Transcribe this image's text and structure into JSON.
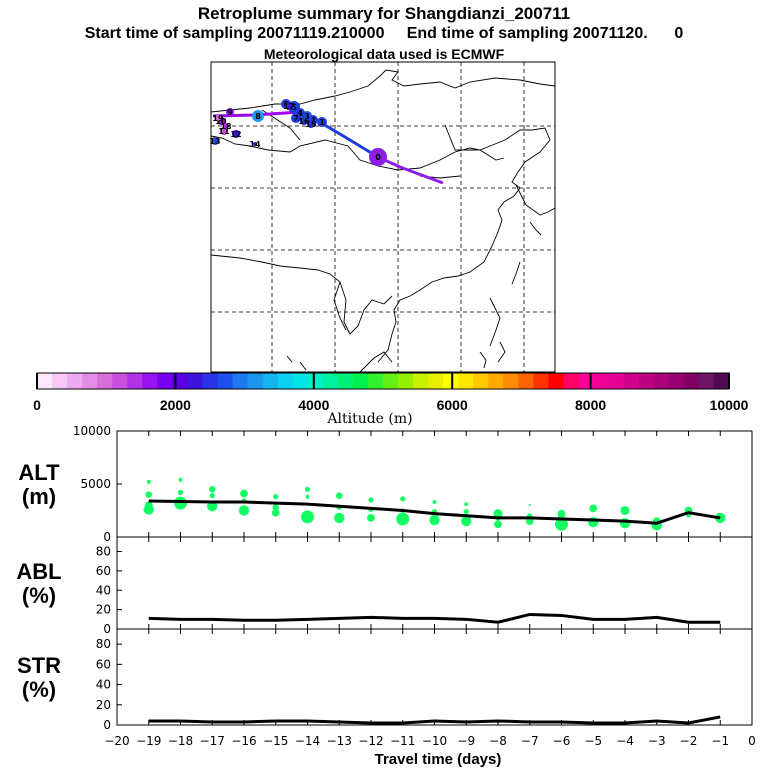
{
  "titles": {
    "line1": "Retroplume summary for Shangdianzi_200711",
    "line2": "Start time of sampling 20071119.210000     End time of sampling 20071120.      0",
    "line3": "Meteorological data used is ECMWF"
  },
  "map": {
    "trajectory_markers": [
      "0",
      "1",
      "2",
      "3",
      "4",
      "5",
      "6",
      "7",
      "8",
      "9",
      "10",
      "11",
      "12",
      "13",
      "14",
      "15",
      "16",
      "17",
      "18",
      "19"
    ],
    "colors": {
      "land_outline": "#000000",
      "grid": "#000000",
      "track_main": "#1e3cdc",
      "track_recent": "#8c1ee6",
      "track_old": "#a000f0"
    }
  },
  "colorbar": {
    "tick_labels": [
      "0",
      "2000",
      "4000",
      "6000",
      "8000",
      "10000"
    ],
    "axis_label": "Altitude (m)",
    "colors": [
      "#ffe6ff",
      "#f5c8f5",
      "#eeaaee",
      "#e38ce3",
      "#d86ed8",
      "#c850dc",
      "#b432e6",
      "#9614f0",
      "#7800f0",
      "#5a00e6",
      "#3c14dc",
      "#2832e6",
      "#1e50f0",
      "#1e78f0",
      "#1e96f0",
      "#14b4f0",
      "#0ad2f0",
      "#00e6e6",
      "#00f0c8",
      "#00f0a0",
      "#00f078",
      "#00f050",
      "#32f032",
      "#64f014",
      "#96f000",
      "#c8f000",
      "#e6f000",
      "#ffff00",
      "#ffe600",
      "#ffc800",
      "#ffaa00",
      "#ff8c00",
      "#ff6400",
      "#ff3200",
      "#ff0000",
      "#ff0064",
      "#ff0096",
      "#f00096",
      "#e60096",
      "#d2008c",
      "#be0082",
      "#aa0078",
      "#960070",
      "#820064",
      "#6e1464",
      "#500a50"
    ]
  },
  "chart_data": [
    {
      "type": "scatter",
      "ylabel": "ALT\n(m)",
      "ylim": [
        0,
        10000
      ],
      "y_ticks": [
        "0",
        "5000",
        "10000"
      ],
      "x": [
        -19,
        -18,
        -17,
        -16,
        -15,
        -14,
        -13,
        -12,
        -11,
        -10,
        -9,
        -8,
        -7,
        -6,
        -5,
        -4,
        -3,
        -2,
        -1
      ],
      "line_values": [
        3400,
        3350,
        3300,
        3300,
        3200,
        3100,
        2900,
        2700,
        2500,
        2200,
        2000,
        1800,
        1800,
        1700,
        1600,
        1500,
        1300,
        2300,
        1800
      ],
      "points": [
        [
          -19,
          5200,
          1.5
        ],
        [
          -19,
          4000,
          2.5
        ],
        [
          -19,
          3000,
          3
        ],
        [
          -19,
          2600,
          4
        ],
        [
          -18,
          5400,
          1.5
        ],
        [
          -18,
          4200,
          2
        ],
        [
          -18,
          3200,
          5
        ],
        [
          -17,
          4500,
          2.5
        ],
        [
          -17,
          3900,
          2
        ],
        [
          -17,
          2900,
          4
        ],
        [
          -16,
          4100,
          3
        ],
        [
          -16,
          3400,
          2
        ],
        [
          -16,
          2500,
          4
        ],
        [
          -15,
          3800,
          2
        ],
        [
          -15,
          2800,
          2.5
        ],
        [
          -15,
          2300,
          3
        ],
        [
          -14,
          4500,
          2
        ],
        [
          -14,
          3800,
          1.5
        ],
        [
          -14,
          1900,
          5
        ],
        [
          -13,
          3900,
          2.5
        ],
        [
          -13,
          2800,
          2
        ],
        [
          -13,
          1800,
          4
        ],
        [
          -12,
          3500,
          2
        ],
        [
          -12,
          2600,
          2
        ],
        [
          -12,
          1800,
          3
        ],
        [
          -11,
          3600,
          2
        ],
        [
          -11,
          2500,
          1.5
        ],
        [
          -11,
          1700,
          5
        ],
        [
          -10,
          3300,
          1.5
        ],
        [
          -10,
          2400,
          2
        ],
        [
          -10,
          1600,
          4
        ],
        [
          -9,
          3100,
          1.5
        ],
        [
          -9,
          2400,
          2
        ],
        [
          -9,
          1500,
          4
        ],
        [
          -8,
          2200,
          3.5
        ],
        [
          -8,
          1800,
          2
        ],
        [
          -8,
          1200,
          3
        ],
        [
          -7,
          3000,
          0.8
        ],
        [
          -7,
          2000,
          2
        ],
        [
          -7,
          1500,
          3
        ],
        [
          -6,
          2200,
          3
        ],
        [
          -6,
          1800,
          3
        ],
        [
          -6,
          1200,
          5
        ],
        [
          -5,
          2700,
          3
        ],
        [
          -5,
          1400,
          4
        ],
        [
          -4,
          2500,
          3.5
        ],
        [
          -4,
          1300,
          4
        ],
        [
          -3,
          1500,
          3
        ],
        [
          -3,
          1100,
          4
        ],
        [
          -2,
          2500,
          3
        ],
        [
          -2,
          2100,
          2
        ],
        [
          -1,
          2000,
          2
        ],
        [
          -1,
          1800,
          4
        ]
      ]
    },
    {
      "type": "line",
      "ylabel": "ABL\n(%)",
      "ylim": [
        0,
        95
      ],
      "y_ticks": [
        "0",
        "20",
        "40",
        "60",
        "80"
      ],
      "x": [
        -19,
        -18,
        -17,
        -16,
        -15,
        -14,
        -13,
        -12,
        -11,
        -10,
        -9,
        -8,
        -7,
        -6,
        -5,
        -4,
        -3,
        -2,
        -1
      ],
      "values": [
        11,
        10,
        10,
        9,
        9,
        10,
        11,
        12,
        11,
        11,
        10,
        7,
        15,
        14,
        10,
        10,
        12,
        7,
        7
      ]
    },
    {
      "type": "line",
      "ylabel": "STR\n(%)",
      "ylim": [
        0,
        95
      ],
      "y_ticks": [
        "0",
        "20",
        "40",
        "60",
        "80"
      ],
      "x": [
        -19,
        -18,
        -17,
        -16,
        -15,
        -14,
        -13,
        -12,
        -11,
        -10,
        -9,
        -8,
        -7,
        -6,
        -5,
        -4,
        -3,
        -2,
        -1
      ],
      "values": [
        4,
        4,
        3,
        3,
        4,
        4,
        3,
        2,
        2,
        4,
        3,
        4,
        3,
        3,
        2,
        2,
        4,
        2,
        8
      ]
    }
  ],
  "x_axis": {
    "label": "Travel time (days)",
    "ticks": [
      "−20",
      "−19",
      "−18",
      "−17",
      "−16",
      "−15",
      "−14",
      "−13",
      "−12",
      "−11",
      "−10",
      "−9",
      "−8",
      "−7",
      "−6",
      "−5",
      "−4",
      "−3",
      "−2",
      "−1",
      "0"
    ]
  },
  "styles": {
    "point_color": "#14ff64",
    "line_color": "#000000"
  }
}
